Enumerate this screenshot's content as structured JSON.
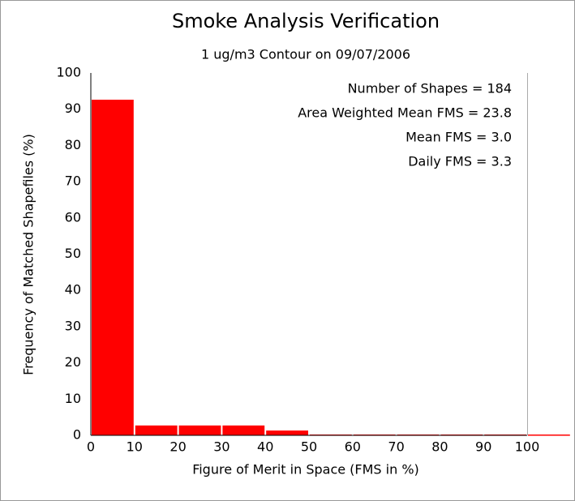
{
  "chart_data": {
    "type": "histogram",
    "title": "Smoke Analysis Verification",
    "subtitle": "1 ug/m3 Contour on 09/07/2006",
    "x_label": "Figure of Merit in Space (FMS in %)",
    "y_label": "Frequency of Matched Shapefiles (%)",
    "bins": [
      0,
      10,
      20,
      30,
      40,
      50,
      60,
      70,
      80,
      90,
      100,
      110
    ],
    "values": [
      92.4,
      2.5,
      2.5,
      2.5,
      1.1,
      0,
      0,
      0,
      0,
      0,
      0
    ],
    "color": "#ff0000",
    "xlim": [
      0,
      100
    ],
    "ylim": [
      0,
      100
    ],
    "xticks": [
      0,
      10,
      20,
      30,
      40,
      50,
      60,
      70,
      80,
      90,
      100
    ],
    "yticks": [
      0,
      10,
      20,
      30,
      40,
      50,
      60,
      70,
      80,
      90,
      100
    ],
    "annotations": [
      "Number of Shapes = 184",
      "Area Weighted Mean FMS = 23.8",
      "Mean FMS = 3.0",
      "Daily FMS = 3.3"
    ]
  }
}
